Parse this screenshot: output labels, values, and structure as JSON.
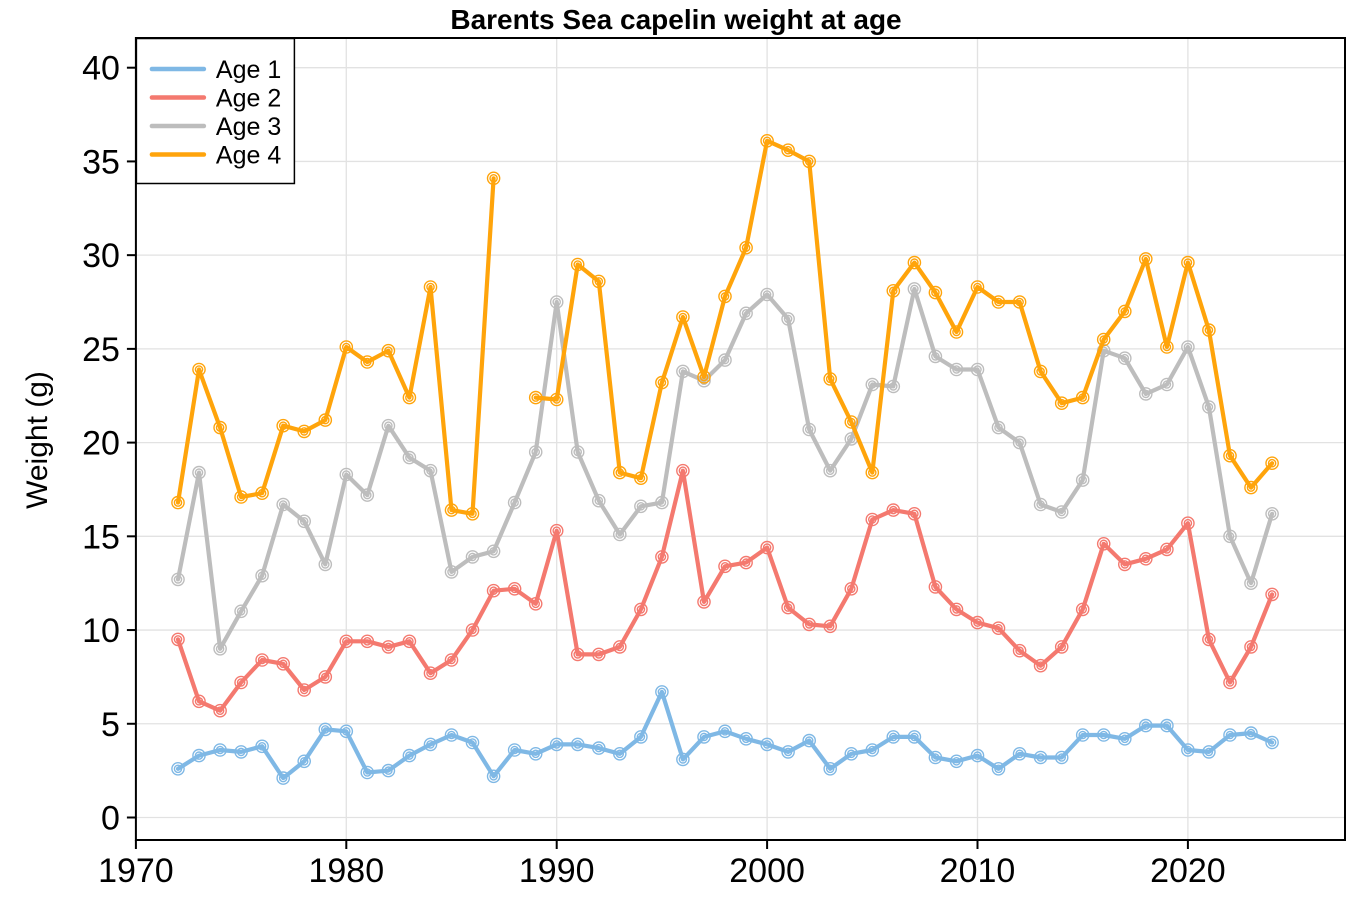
{
  "title": "Barents Sea capelin weight at age",
  "y_axis_label": "Weight (g)",
  "legend": {
    "position": "top-left",
    "items": [
      {
        "label": "Age 1",
        "color": "#7FB8E5"
      },
      {
        "label": "Age 2",
        "color": "#F4796F"
      },
      {
        "label": "Age 3",
        "color": "#BDBDBD"
      },
      {
        "label": "Age 4",
        "color": "#FFA40B"
      }
    ]
  },
  "chart_data": {
    "type": "line",
    "title": "Barents Sea capelin weight at age",
    "xlabel": "",
    "ylabel": "Weight (g)",
    "xlim": [
      1970,
      2027
    ],
    "ylim": [
      -1.2,
      41.6
    ],
    "grid": true,
    "grid_color": "#E2E2E2",
    "legend_position": "top-left",
    "markers": "open-circle",
    "x_ticks": [
      1970,
      1980,
      1990,
      2000,
      2010,
      2020
    ],
    "y_ticks": [
      0,
      5,
      10,
      15,
      20,
      25,
      30,
      35,
      40
    ],
    "x": [
      1972,
      1973,
      1974,
      1975,
      1976,
      1977,
      1978,
      1979,
      1980,
      1981,
      1982,
      1983,
      1984,
      1985,
      1986,
      1987,
      1988,
      1989,
      1990,
      1991,
      1992,
      1993,
      1994,
      1995,
      1996,
      1997,
      1998,
      1999,
      2000,
      2001,
      2002,
      2003,
      2004,
      2005,
      2006,
      2007,
      2008,
      2009,
      2010,
      2011,
      2012,
      2013,
      2014,
      2015,
      2016,
      2017,
      2018,
      2019,
      2020,
      2021,
      2022,
      2023,
      2024
    ],
    "series": [
      {
        "name": "Age 1",
        "color": "#7FB8E5",
        "values": [
          2.6,
          3.3,
          3.6,
          3.5,
          3.8,
          2.1,
          3.0,
          4.7,
          4.6,
          2.4,
          2.5,
          3.3,
          3.9,
          4.4,
          4.0,
          2.2,
          3.6,
          3.4,
          3.9,
          3.9,
          3.7,
          3.4,
          4.3,
          6.7,
          3.1,
          4.3,
          4.6,
          4.2,
          3.9,
          3.5,
          4.1,
          2.6,
          3.4,
          3.6,
          4.3,
          4.3,
          3.2,
          3.0,
          3.3,
          2.6,
          3.4,
          3.2,
          3.2,
          4.4,
          4.4,
          4.2,
          4.9,
          4.9,
          3.6,
          3.5,
          4.4,
          4.5,
          4.0
        ]
      },
      {
        "name": "Age 2",
        "color": "#F4796F",
        "values": [
          9.5,
          6.2,
          5.7,
          7.2,
          8.4,
          8.2,
          6.8,
          7.5,
          9.4,
          9.4,
          9.1,
          9.4,
          7.7,
          8.4,
          10.0,
          12.1,
          12.2,
          11.4,
          15.3,
          8.7,
          8.7,
          9.1,
          11.1,
          13.9,
          18.5,
          11.5,
          13.4,
          13.6,
          14.4,
          11.2,
          10.3,
          10.2,
          12.2,
          15.9,
          16.4,
          16.2,
          12.3,
          11.1,
          10.4,
          10.1,
          8.9,
          8.1,
          9.1,
          11.1,
          14.6,
          13.5,
          13.8,
          14.3,
          15.7,
          9.5,
          7.2,
          9.1,
          11.9
        ]
      },
      {
        "name": "Age 3",
        "color": "#BDBDBD",
        "values": [
          12.7,
          18.4,
          9.0,
          11.0,
          12.9,
          16.7,
          15.8,
          13.5,
          18.3,
          17.2,
          20.9,
          19.2,
          18.5,
          13.1,
          13.9,
          14.2,
          16.8,
          19.5,
          27.5,
          19.5,
          16.9,
          15.1,
          16.6,
          16.8,
          23.8,
          23.3,
          24.4,
          26.9,
          27.9,
          26.6,
          20.7,
          18.5,
          20.2,
          23.1,
          23.0,
          28.2,
          24.6,
          23.9,
          23.9,
          20.8,
          20.0,
          16.7,
          16.3,
          18.0,
          24.9,
          24.5,
          22.6,
          23.1,
          25.1,
          21.9,
          15.0,
          12.5,
          16.2
        ]
      },
      {
        "name": "Age 4",
        "color": "#FFA40B",
        "values": [
          16.8,
          23.9,
          20.8,
          17.1,
          17.3,
          20.9,
          20.6,
          21.2,
          25.1,
          24.3,
          24.9,
          22.4,
          28.3,
          16.4,
          16.2,
          34.1,
          null,
          22.4,
          22.3,
          29.5,
          28.6,
          18.4,
          18.1,
          23.2,
          26.7,
          23.5,
          27.8,
          30.4,
          36.1,
          35.6,
          35.0,
          23.4,
          21.1,
          18.4,
          28.1,
          29.6,
          28.0,
          25.9,
          28.3,
          27.5,
          27.5,
          23.8,
          22.1,
          22.4,
          25.5,
          27.0,
          29.8,
          25.1,
          29.6,
          26.0,
          19.3,
          17.6,
          18.9
        ]
      }
    ]
  }
}
